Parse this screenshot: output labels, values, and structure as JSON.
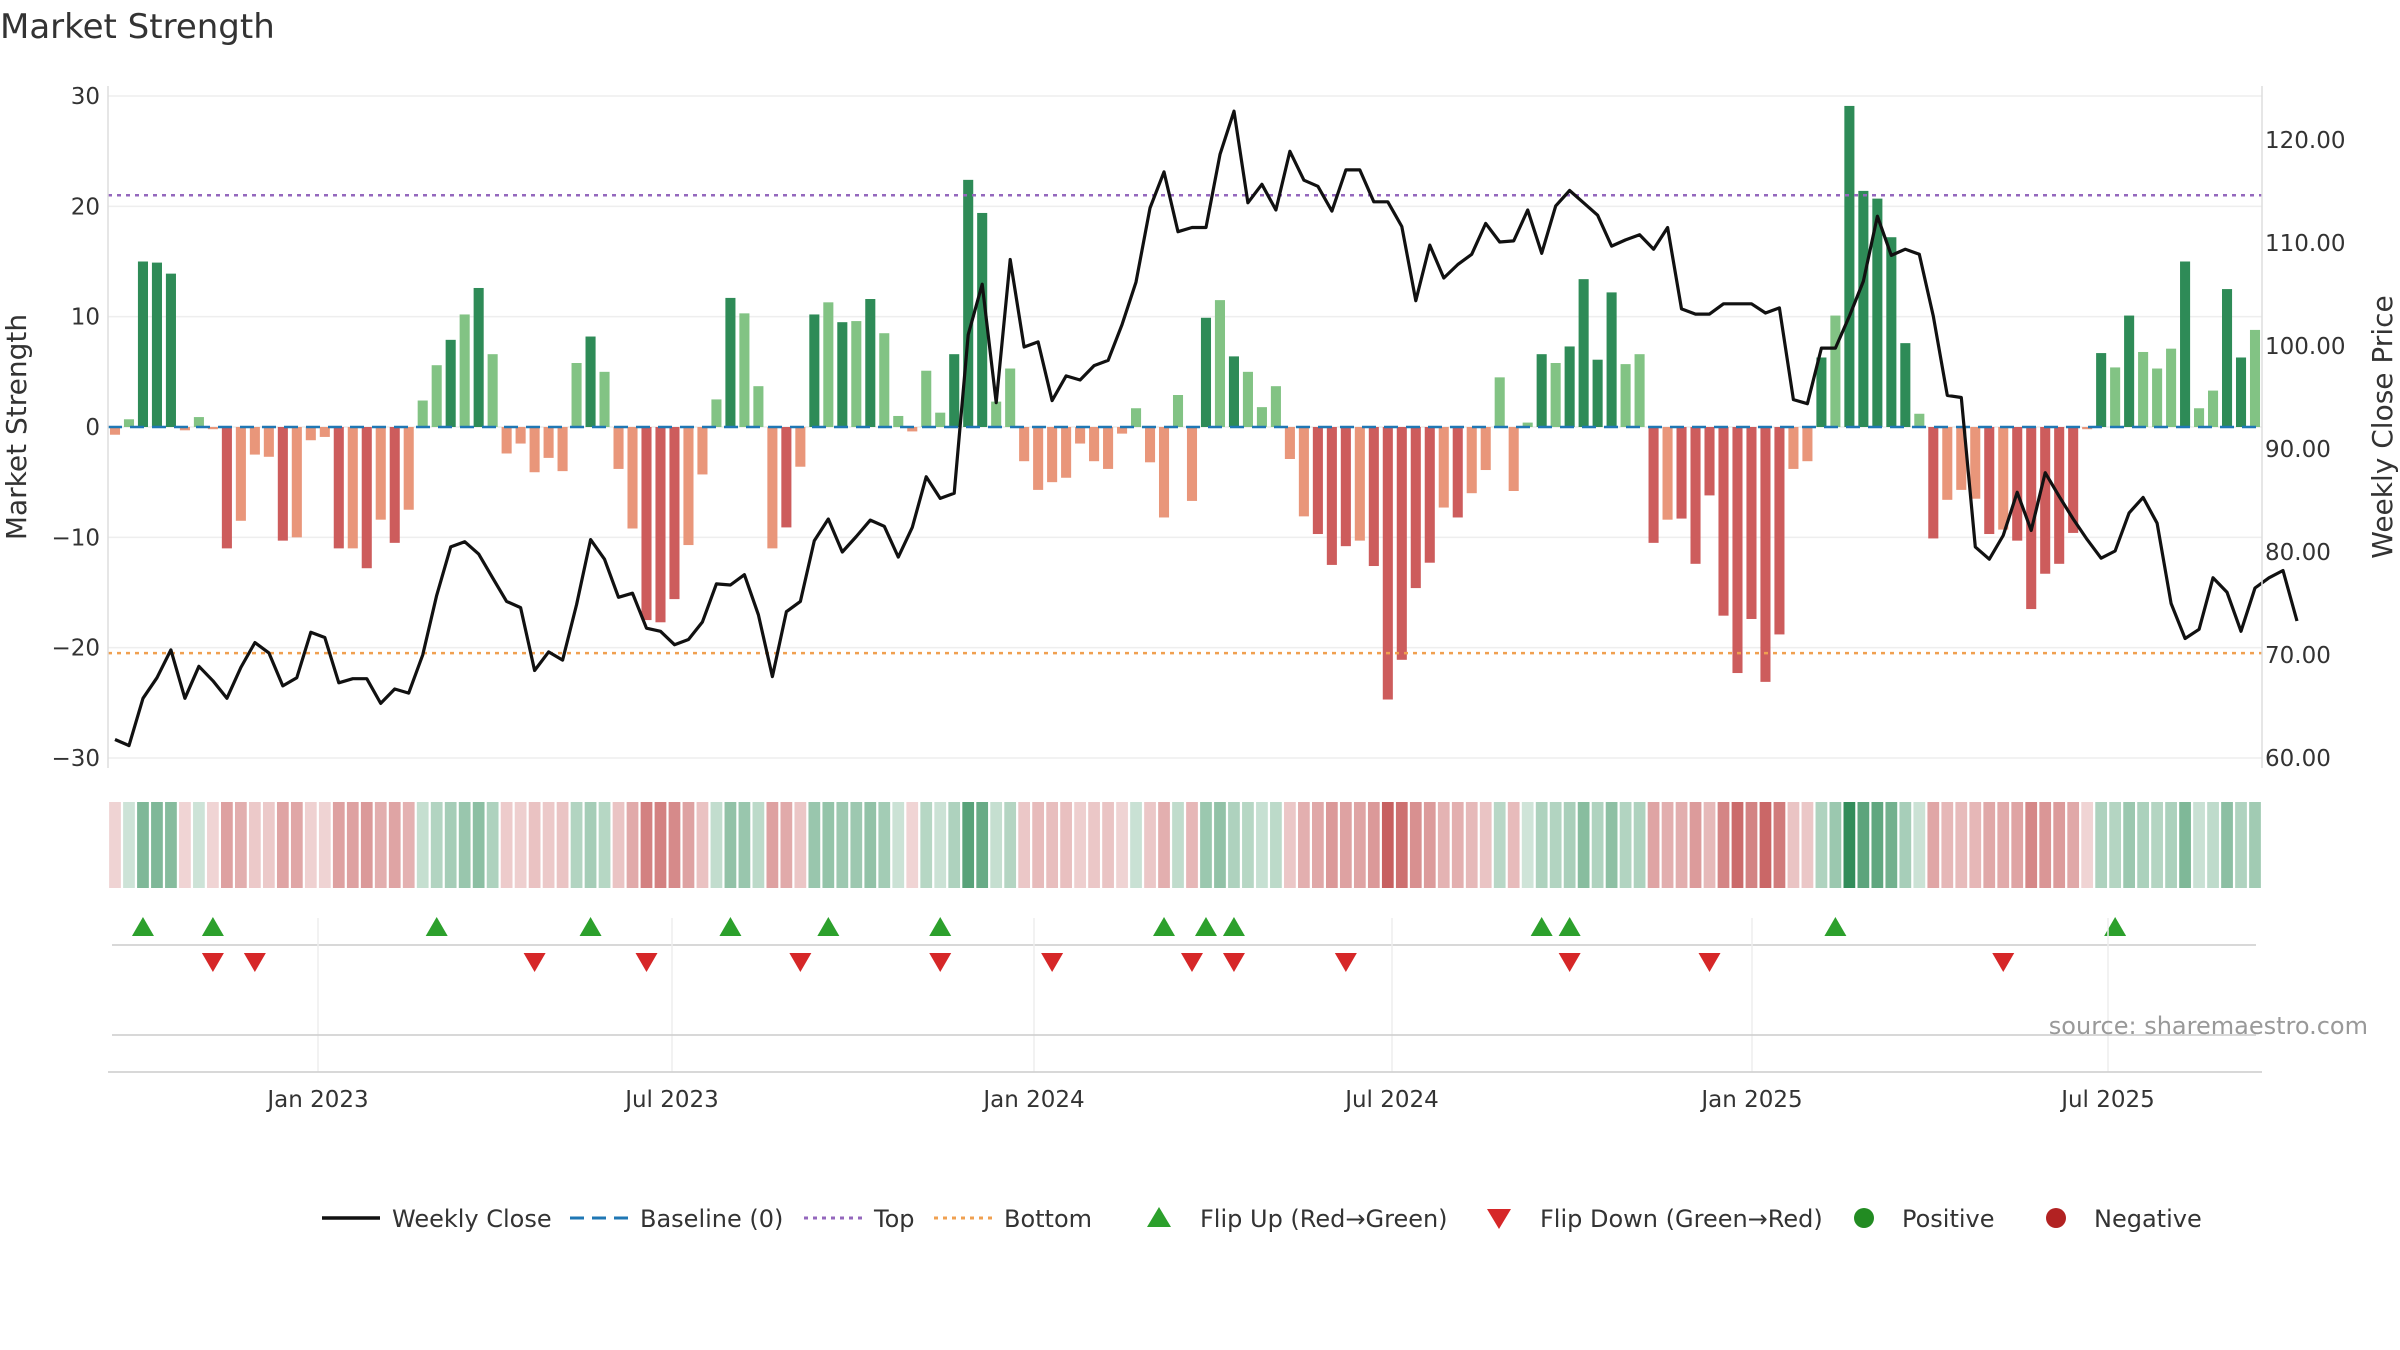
{
  "chart_data": {
    "type": "bar",
    "title": "Market Strength",
    "ylabel": "Market Strength",
    "y2label": "Weekly Close Price",
    "ylim": [
      -30,
      30
    ],
    "y2lim": [
      60,
      125
    ],
    "yticks": [
      "30",
      "20",
      "10",
      "0",
      "−10",
      "−20",
      "−30"
    ],
    "y2ticks": [
      "120.00",
      "110.00",
      "100.00",
      "90.00",
      "80.00",
      "70.00",
      "60.00"
    ],
    "xticks": [
      "Jan 2023",
      "Jul 2023",
      "Jan 2024",
      "Jul 2024",
      "Jan 2025",
      "Jul 2025"
    ],
    "top_line": 21,
    "bottom_line": -20.5,
    "source": "source: sharemaestro.com",
    "legend": [
      {
        "label": "Weekly Close",
        "kind": "line",
        "color": "#111111"
      },
      {
        "label": "Baseline (0)",
        "kind": "dash",
        "color": "#1f77b4"
      },
      {
        "label": "Top",
        "kind": "dot",
        "color": "#9467bd"
      },
      {
        "label": "Bottom",
        "kind": "dot",
        "color": "#f0a050"
      },
      {
        "label": "Flip Up (Red→Green)",
        "kind": "tri-up",
        "color": "#2ca02c"
      },
      {
        "label": "Flip Down (Green→Red)",
        "kind": "tri-down",
        "color": "#d62728"
      },
      {
        "label": "Positive",
        "kind": "dot-marker",
        "color": "#228b22"
      },
      {
        "label": "Negative",
        "kind": "dot-marker",
        "color": "#b22222"
      }
    ],
    "colors": {
      "pos_dark": "#2e8b57",
      "pos_light": "#82c384",
      "neg_dark": "#cd5c5c",
      "neg_light": "#e9967a",
      "price": "#111111",
      "baseline": "#1f77b4",
      "top": "#9467bd",
      "bottom": "#f0a050",
      "flip_up": "#2ca02c",
      "flip_down": "#d62728"
    },
    "bars": [
      -0.7,
      0.7,
      15,
      14.9,
      13.9,
      -0.3,
      0.9,
      -0.2,
      -11,
      -8.5,
      -2.5,
      -2.7,
      -10.3,
      -10,
      -1.2,
      -0.9,
      -11,
      -11,
      -12.8,
      -8.4,
      -10.5,
      -7.5,
      2.4,
      5.6,
      7.9,
      10.2,
      12.6,
      6.6,
      -2.4,
      -1.5,
      -4.1,
      -2.8,
      -4,
      5.8,
      8.2,
      5,
      -3.8,
      -9.2,
      -17.5,
      -17.7,
      -15.6,
      -10.7,
      -4.3,
      2.5,
      11.7,
      10.3,
      3.7,
      -11,
      -9.1,
      -3.6,
      10.2,
      11.3,
      9.5,
      9.6,
      11.6,
      8.5,
      1,
      -0.4,
      5.1,
      1.3,
      6.6,
      22.4,
      19.4,
      2.3,
      5.3,
      -3.1,
      -5.7,
      -5,
      -4.6,
      -1.5,
      -3.1,
      -3.8,
      -0.6,
      1.7,
      -3.2,
      -8.2,
      2.9,
      -6.7,
      9.9,
      11.5,
      6.4,
      5,
      1.8,
      3.7,
      -2.9,
      -8.1,
      -9.7,
      -12.5,
      -10.8,
      -10.3,
      -12.6,
      -24.7,
      -21.1,
      -14.6,
      -12.3,
      -7.3,
      -8.2,
      -6,
      -3.9,
      4.5,
      -5.8,
      0.4,
      6.6,
      5.8,
      7.3,
      13.4,
      6.1,
      12.2,
      5.7,
      6.6,
      -10.5,
      -8.4,
      -8.3,
      -12.4,
      -6.2,
      -17.1,
      -22.3,
      -17.4,
      -23.1,
      -18.8,
      -3.8,
      -3.1,
      6.3,
      10.1,
      29.1,
      21.4,
      20.7,
      17.2,
      7.6,
      1.2,
      -10.1,
      -6.6,
      -5.7,
      -6.5,
      -9.7,
      -9.3,
      -10.3,
      -16.5,
      -13.3,
      -12.4,
      -9.6,
      -0.2,
      6.7,
      5.4,
      10.1,
      6.8,
      5.3,
      7.1,
      15,
      1.7,
      3.3,
      12.5,
      6.3,
      8.8
    ],
    "price": [
      61.8,
      61.2,
      65.8,
      67.8,
      70.5,
      65.8,
      68.9,
      67.5,
      65.8,
      68.8,
      71.2,
      70.2,
      67,
      67.8,
      72.2,
      71.7,
      67.3,
      67.7,
      67.7,
      65.3,
      66.7,
      66.3,
      70,
      75.8,
      80.5,
      81,
      79.8,
      77.5,
      75.2,
      74.6,
      68.5,
      70.3,
      69.5,
      74.9,
      81.2,
      79.3,
      75.6,
      76,
      72.6,
      72.3,
      71,
      71.5,
      73.2,
      76.9,
      76.8,
      77.8,
      73.9,
      67.9,
      74.2,
      75.2,
      81.1,
      83.2,
      80,
      81.5,
      83.1,
      82.5,
      79.5,
      82.4,
      87.3,
      85.2,
      85.7,
      101.1,
      106,
      94.5,
      108.4,
      99.9,
      100.4,
      94.7,
      97.1,
      96.7,
      98.1,
      98.6,
      102.1,
      106.2,
      113.4,
      116.9,
      111.1,
      111.5,
      111.5,
      118.6,
      122.8,
      113.9,
      115.7,
      113.2,
      118.9,
      116.1,
      115.5,
      113.1,
      117.1,
      117.1,
      114,
      114,
      111.6,
      104.4,
      109.8,
      106.6,
      107.9,
      108.9,
      111.9,
      110.1,
      110.2,
      113.2,
      109,
      113.6,
      115.1,
      113.9,
      112.7,
      109.7,
      110.3,
      110.8,
      109.4,
      111.5,
      103.6,
      103.1,
      103.1,
      104.1,
      104.1,
      104.1,
      103.2,
      103.7,
      94.8,
      94.4,
      99.8,
      99.8,
      102.9,
      106.3,
      112.6,
      108.8,
      109.4,
      108.9,
      102.9,
      95.2,
      95,
      80.5,
      79.3,
      81.6,
      85.8,
      82.1,
      87.7,
      85.4,
      83.2,
      81.2,
      79.4,
      80.1,
      83.8,
      85.3,
      82.8,
      75,
      71.6,
      72.5,
      77.5,
      76.1,
      72.3,
      76.5,
      77.5,
      78.2,
      73.3
    ],
    "flip_up": [
      2,
      7,
      23,
      34,
      44,
      51,
      59,
      75,
      78,
      80,
      102,
      104,
      123,
      143
    ],
    "flip_down": [
      7,
      10,
      30,
      38,
      49,
      59,
      67,
      77,
      80,
      88,
      104,
      114,
      135
    ]
  }
}
